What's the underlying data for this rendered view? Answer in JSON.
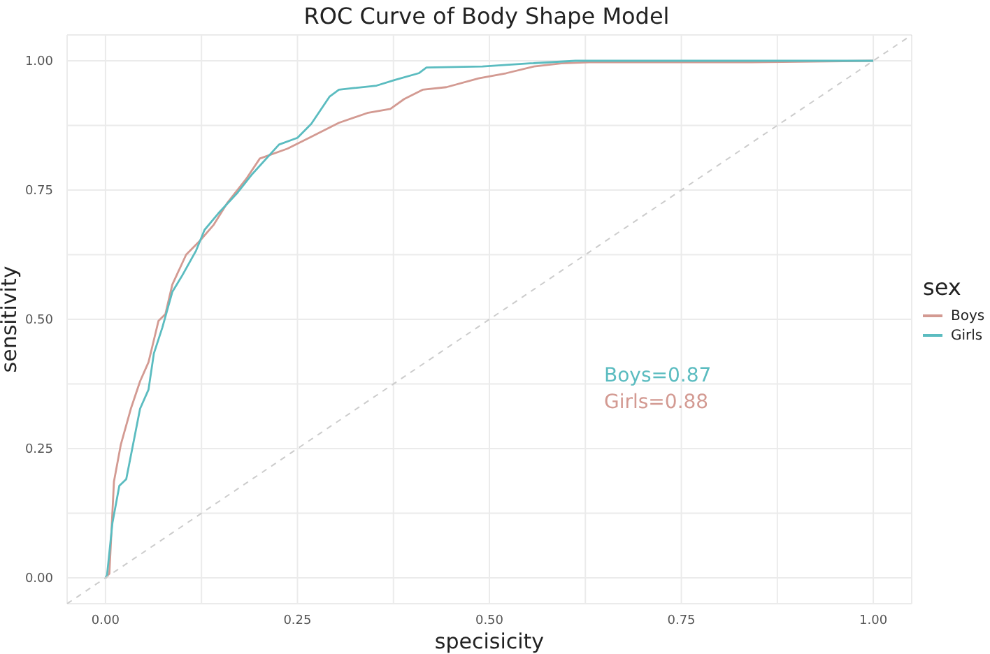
{
  "chart_data": {
    "type": "line",
    "title": "ROC Curve of Body Shape Model",
    "xlabel": "specisicity",
    "ylabel": "sensitivity",
    "legend_title": "sex",
    "legend": "right",
    "grid": true,
    "marker": "none",
    "xlim": [
      -0.05,
      1.05
    ],
    "ylim": [
      -0.05,
      1.05
    ],
    "xticks": [
      {
        "value": 0,
        "label": "0.00"
      },
      {
        "value": 0.125,
        "label": null
      },
      {
        "value": 0.25,
        "label": "0.25"
      },
      {
        "value": 0.375,
        "label": null
      },
      {
        "value": 0.5,
        "label": "0.50"
      },
      {
        "value": 0.625,
        "label": null
      },
      {
        "value": 0.75,
        "label": "0.75"
      },
      {
        "value": 0.875,
        "label": null
      },
      {
        "value": 1,
        "label": "1.00"
      }
    ],
    "yticks": [
      {
        "value": 0,
        "label": "0.00"
      },
      {
        "value": 0.125,
        "label": null
      },
      {
        "value": 0.25,
        "label": "0.25"
      },
      {
        "value": 0.375,
        "label": null
      },
      {
        "value": 0.5,
        "label": "0.50"
      },
      {
        "value": 0.625,
        "label": null
      },
      {
        "value": 0.75,
        "label": "0.75"
      },
      {
        "value": 0.875,
        "label": null
      },
      {
        "value": 1,
        "label": "1.00"
      }
    ],
    "series": [
      {
        "name": "Boys",
        "color": "#d39a92",
        "x": [
          0,
          0.005,
          0.011,
          0.02,
          0.033,
          0.045,
          0.056,
          0.069,
          0.078,
          0.087,
          0.105,
          0.123,
          0.141,
          0.159,
          0.183,
          0.201,
          0.237,
          0.268,
          0.304,
          0.341,
          0.371,
          0.389,
          0.413,
          0.444,
          0.486,
          0.522,
          0.558,
          0.594,
          0.63,
          0.842,
          1
        ],
        "values": [
          0,
          0.008,
          0.186,
          0.258,
          0.327,
          0.38,
          0.417,
          0.497,
          0.51,
          0.567,
          0.625,
          0.652,
          0.683,
          0.726,
          0.771,
          0.811,
          0.83,
          0.853,
          0.88,
          0.899,
          0.907,
          0.926,
          0.944,
          0.949,
          0.966,
          0.976,
          0.989,
          0.995,
          0.997,
          0.997,
          1
        ]
      },
      {
        "name": "Girls",
        "color": "#5bbcc0",
        "x": [
          0,
          0.002,
          0.009,
          0.018,
          0.027,
          0.038,
          0.045,
          0.056,
          0.063,
          0.074,
          0.087,
          0.1,
          0.118,
          0.129,
          0.147,
          0.172,
          0.19,
          0.226,
          0.25,
          0.268,
          0.292,
          0.304,
          0.322,
          0.353,
          0.377,
          0.408,
          0.418,
          0.491,
          0.553,
          0.612,
          1
        ],
        "values": [
          0,
          0.005,
          0.106,
          0.178,
          0.191,
          0.274,
          0.327,
          0.364,
          0.434,
          0.484,
          0.553,
          0.585,
          0.633,
          0.673,
          0.705,
          0.745,
          0.779,
          0.838,
          0.851,
          0.878,
          0.931,
          0.944,
          0.947,
          0.952,
          0.963,
          0.976,
          0.987,
          0.989,
          0.995,
          1,
          1
        ]
      },
      {
        "color": "#cccccc",
        "line_style": "dashed",
        "x": [
          -0.05,
          1.05
        ],
        "values": [
          -0.05,
          1.05
        ]
      }
    ],
    "annotations": [
      "Boys=0.87",
      "Girls=0.88"
    ]
  }
}
